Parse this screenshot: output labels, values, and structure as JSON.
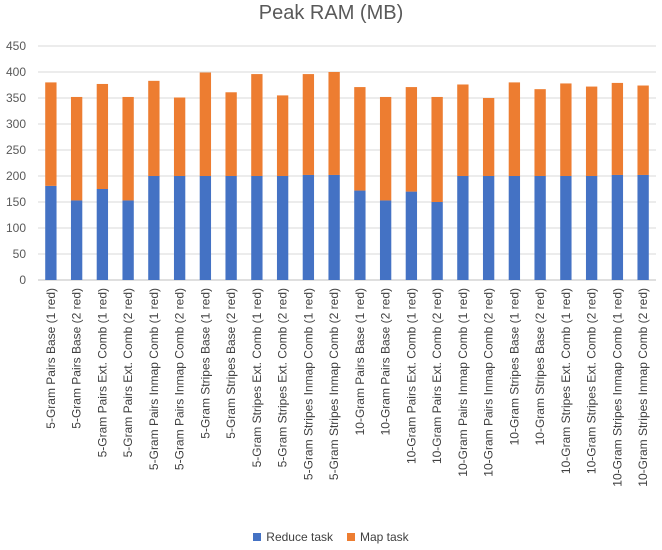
{
  "chart_data": {
    "type": "bar",
    "stacked": true,
    "title": "Peak RAM (MB)",
    "xlabel": "",
    "ylabel": "",
    "ylim": [
      0,
      450
    ],
    "yticks": [
      0,
      50,
      100,
      150,
      200,
      250,
      300,
      350,
      400,
      450
    ],
    "grid": true,
    "legend_position": "bottom",
    "categories": [
      "5-Gram Pairs Base (1 red)",
      "5-Gram Pairs Base (2 red)",
      "5-Gram Pairs Ext. Comb (1 red)",
      "5-Gram Pairs Ext. Comb (2 red)",
      "5-Gram Pairs Inmap Comb (1 red)",
      "5-Gram Pairs Inmap Comb (2 red)",
      "5-Gram Stripes Base (1 red)",
      "5-Gram Stripes Base (2 red)",
      "5-Gram Stripes Ext. Comb (1 red)",
      "5-Gram Stripes Ext. Comb (2 red)",
      "5-Gram Stripes Inmap Comb (1 red)",
      "5-Gram Stripes Inmap Comb (2 red)",
      "10-Gram Pairs Base (1 red)",
      "10-Gram Pairs Base (2 red)",
      "10-Gram Pairs Ext. Comb (1 red)",
      "10-Gram Pairs Ext. Comb (2 red)",
      "10-Gram Pairs Inmap Comb (1 red)",
      "10-Gram Pairs Inmap Comb (2 red)",
      "10-Gram Stripes Base (1 red)",
      "10-Gram Stripes Base (2 red)",
      "10-Gram Stripes Ext. Comb (1 red)",
      "10-Gram Stripes Ext. Comb (2 red)",
      "10-Gram Stripes Inmap Comb (1 red)",
      "10-Gram Stripes Inmap Comb (2 red)"
    ],
    "series": [
      {
        "name": "Reduce task",
        "color": "#4472C4",
        "values": [
          181,
          153,
          175,
          153,
          200,
          200,
          200,
          200,
          200,
          200,
          202,
          202,
          172,
          153,
          170,
          150,
          200,
          200,
          200,
          200,
          200,
          200,
          202,
          202
        ]
      },
      {
        "name": "Map task",
        "color": "#ED7D31",
        "values": [
          199,
          199,
          202,
          199,
          183,
          151,
          199,
          161,
          196,
          155,
          194,
          198,
          199,
          199,
          201,
          202,
          176,
          150,
          180,
          167,
          178,
          172,
          177,
          172
        ]
      }
    ]
  }
}
